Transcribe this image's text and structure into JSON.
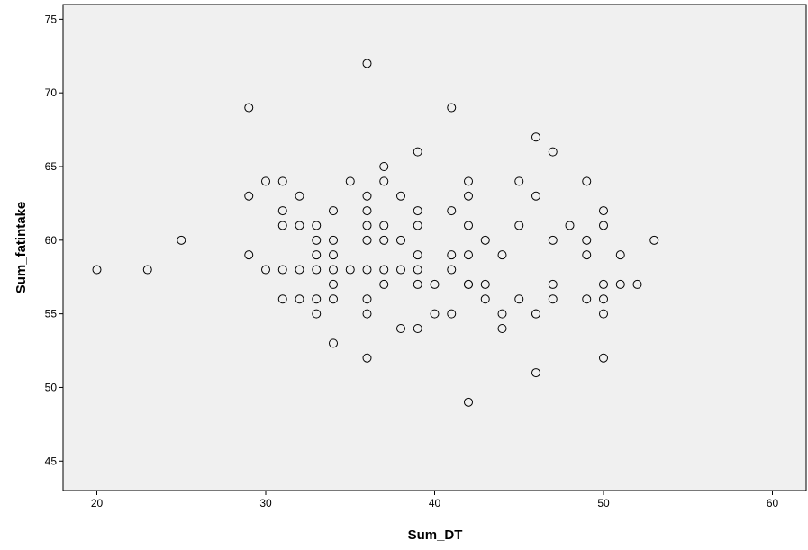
{
  "chart_data": {
    "type": "scatter",
    "title": "",
    "xlabel": "Sum_DT",
    "ylabel": "Sum_fatintake",
    "xlim": [
      18,
      62
    ],
    "ylim": [
      43,
      76
    ],
    "xticks": [
      20,
      30,
      40,
      50,
      60
    ],
    "yticks": [
      45,
      50,
      55,
      60,
      65,
      70,
      75
    ],
    "grid": false,
    "legend": "none",
    "colors": {
      "plot_background": "#f0f0f0",
      "marker_stroke": "#000000",
      "marker_fill": "#f0f0f0"
    },
    "marker": "open-circle",
    "x": [
      20,
      23,
      25,
      29,
      29,
      29,
      30,
      30,
      31,
      31,
      31,
      31,
      31,
      32,
      32,
      32,
      32,
      33,
      33,
      33,
      33,
      33,
      33,
      34,
      34,
      34,
      34,
      34,
      34,
      34,
      35,
      35,
      36,
      36,
      36,
      36,
      36,
      36,
      36,
      36,
      36,
      37,
      37,
      37,
      37,
      37,
      37,
      38,
      38,
      38,
      38,
      39,
      39,
      39,
      39,
      39,
      39,
      39,
      40,
      40,
      41,
      41,
      41,
      41,
      41,
      42,
      42,
      42,
      42,
      42,
      42,
      42,
      43,
      43,
      43,
      44,
      44,
      44,
      45,
      45,
      45,
      46,
      46,
      46,
      46,
      46,
      47,
      47,
      47,
      47,
      48,
      49,
      49,
      49,
      49,
      50,
      50,
      50,
      50,
      50,
      50,
      51,
      51,
      52,
      53
    ],
    "y": [
      58,
      58,
      60,
      69,
      63,
      59,
      64,
      58,
      64,
      62,
      61,
      58,
      56,
      63,
      61,
      58,
      56,
      61,
      60,
      59,
      58,
      56,
      55,
      62,
      60,
      59,
      58,
      57,
      56,
      53,
      64,
      58,
      72,
      63,
      62,
      61,
      60,
      58,
      56,
      55,
      52,
      65,
      64,
      61,
      60,
      58,
      57,
      63,
      60,
      58,
      54,
      66,
      62,
      61,
      59,
      58,
      57,
      54,
      57,
      55,
      69,
      62,
      59,
      58,
      55,
      64,
      63,
      61,
      59,
      57,
      57,
      49,
      60,
      57,
      56,
      59,
      55,
      54,
      64,
      61,
      56,
      67,
      63,
      55,
      55,
      51,
      66,
      60,
      57,
      56,
      61,
      64,
      60,
      59,
      56,
      62,
      61,
      57,
      55,
      52,
      56,
      59,
      57,
      57,
      60
    ]
  }
}
